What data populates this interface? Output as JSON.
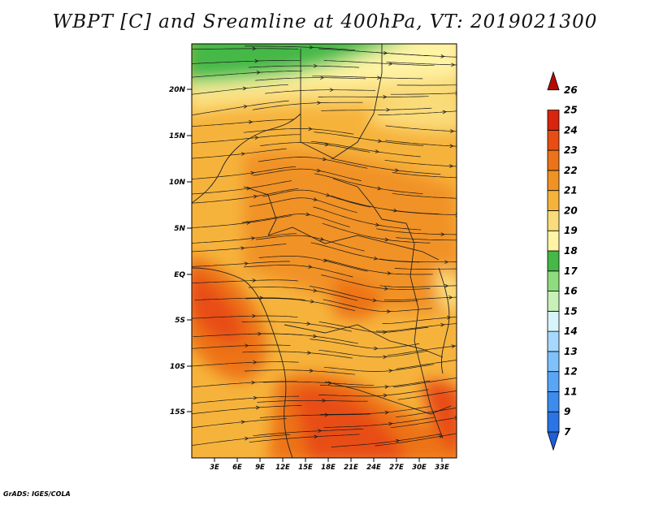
{
  "title": "WBPT [C] and Sreamline at 400hPa, VT: 2019021300",
  "credit": "GrADS: IGES/COLA",
  "map": {
    "lat_labels": [
      "20N",
      "15N",
      "10N",
      "5N",
      "EQ",
      "5S",
      "10S",
      "15S"
    ],
    "lon_labels": [
      "3E",
      "6E",
      "9E",
      "12E",
      "15E",
      "18E",
      "21E",
      "24E",
      "27E",
      "30E",
      "33E"
    ],
    "field": "Wet-bulb potential temperature",
    "overlay": "Streamlines"
  },
  "colorbar": {
    "labels": [
      "7",
      "9",
      "11",
      "12",
      "13",
      "14",
      "15",
      "16",
      "17",
      "18",
      "19",
      "20",
      "21",
      "22",
      "23",
      "24",
      "25",
      "26"
    ],
    "colors": [
      "#1e5fd8",
      "#2b74e6",
      "#3c8cf0",
      "#5aa6f6",
      "#7fc1fb",
      "#a6d9fd",
      "#d8f4fb",
      "#c8f0b8",
      "#8fdc7e",
      "#45b847",
      "#fff3a4",
      "#fadc7a",
      "#f6b33c",
      "#f19225",
      "#ed7318",
      "#e84d13",
      "#d9240e",
      "#b50b05"
    ]
  }
}
